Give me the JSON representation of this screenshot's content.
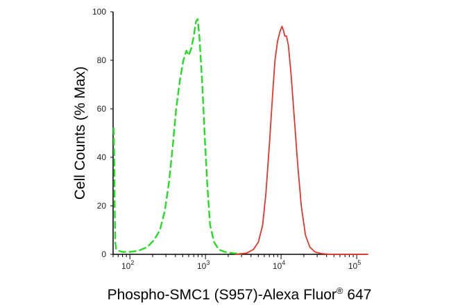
{
  "chart_data": {
    "type": "line",
    "title": "",
    "xlabel": "Phospho-SMC1 (S957)-Alexa Fluor",
    "xlabel_superscript": "®",
    "xlabel_suffix": " 647",
    "ylabel": "Cell Counts (% Max)",
    "x_scale": "log",
    "xlim": [
      60,
      140000
    ],
    "ylim": [
      0,
      100
    ],
    "x_tick_values": [
      100,
      1000,
      10000,
      100000
    ],
    "x_tick_labels": [
      {
        "base": "10",
        "exp": "2"
      },
      {
        "base": "10",
        "exp": "3"
      },
      {
        "base": "10",
        "exp": "4"
      },
      {
        "base": "10",
        "exp": "5"
      }
    ],
    "y_ticks": [
      0,
      20,
      40,
      60,
      80,
      100
    ],
    "grid": false,
    "series": [
      {
        "color": "#22dd22",
        "style": "dashed",
        "points": [
          [
            61,
            52
          ],
          [
            62,
            40
          ],
          [
            63,
            20
          ],
          [
            64,
            5
          ],
          [
            66,
            2
          ],
          [
            70,
            1.5
          ],
          [
            80,
            1
          ],
          [
            100,
            1
          ],
          [
            130,
            1.5
          ],
          [
            170,
            3
          ],
          [
            210,
            6
          ],
          [
            250,
            10
          ],
          [
            290,
            18
          ],
          [
            330,
            30
          ],
          [
            370,
            45
          ],
          [
            410,
            60
          ],
          [
            460,
            72
          ],
          [
            510,
            80
          ],
          [
            560,
            84
          ],
          [
            600,
            82
          ],
          [
            650,
            85
          ],
          [
            700,
            90
          ],
          [
            750,
            96
          ],
          [
            790,
            97
          ],
          [
            830,
            90
          ],
          [
            900,
            72
          ],
          [
            980,
            48
          ],
          [
            1060,
            28
          ],
          [
            1150,
            12
          ],
          [
            1300,
            5
          ],
          [
            1500,
            2
          ],
          [
            1800,
            1
          ],
          [
            2300,
            0.5
          ],
          [
            3000,
            0.2
          ]
        ]
      },
      {
        "color": "#e8332a",
        "style": "solid",
        "points": [
          [
            2500,
            0
          ],
          [
            3500,
            0.5
          ],
          [
            4300,
            2
          ],
          [
            5000,
            5
          ],
          [
            5700,
            12
          ],
          [
            6300,
            25
          ],
          [
            7000,
            45
          ],
          [
            7700,
            65
          ],
          [
            8300,
            80
          ],
          [
            9000,
            88
          ],
          [
            9700,
            92
          ],
          [
            10300,
            94
          ],
          [
            10800,
            92
          ],
          [
            11200,
            90
          ],
          [
            11800,
            90
          ],
          [
            12500,
            86
          ],
          [
            13500,
            75
          ],
          [
            14800,
            58
          ],
          [
            16500,
            38
          ],
          [
            18500,
            20
          ],
          [
            21000,
            8
          ],
          [
            24000,
            3
          ],
          [
            28000,
            1
          ],
          [
            34000,
            0.3
          ],
          [
            45000,
            0
          ],
          [
            140000,
            0
          ]
        ]
      }
    ]
  }
}
